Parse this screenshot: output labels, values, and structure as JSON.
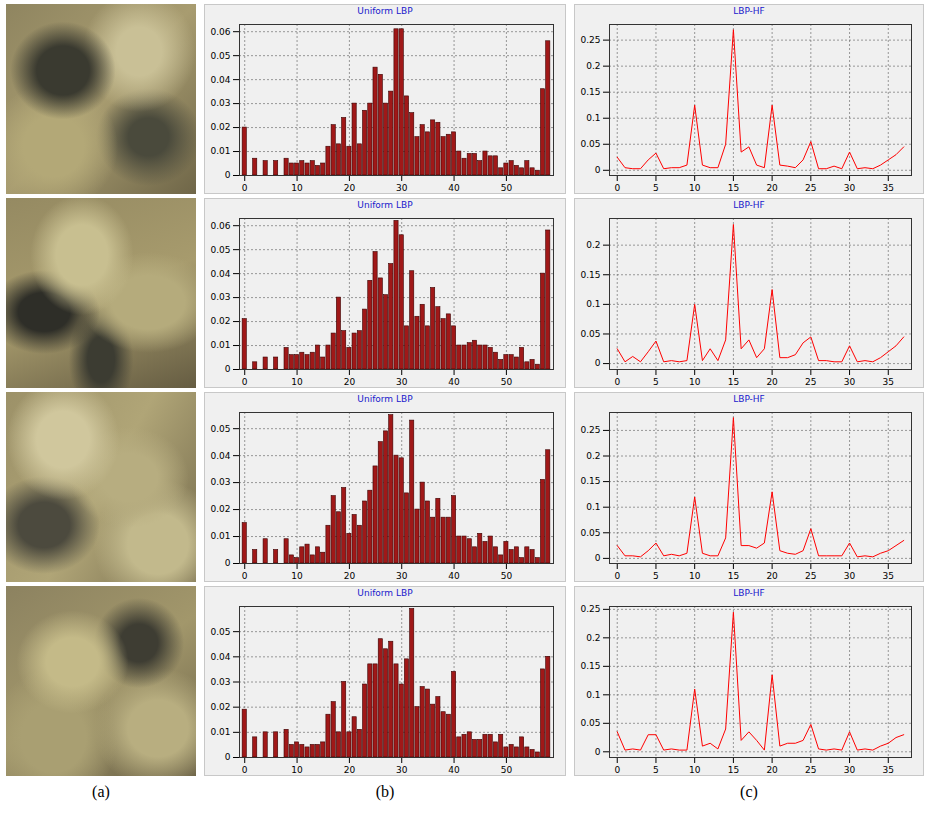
{
  "panel_labels": [
    "(a)",
    "(b)",
    "(c)"
  ],
  "chart_data": [
    {
      "type": "bar",
      "title": "Uniform LBP",
      "color": "#a01818",
      "grid": true,
      "x": [
        0,
        1,
        2,
        3,
        4,
        5,
        6,
        7,
        8,
        9,
        10,
        11,
        12,
        13,
        14,
        15,
        16,
        17,
        18,
        19,
        20,
        21,
        22,
        23,
        24,
        25,
        26,
        27,
        28,
        29,
        30,
        31,
        32,
        33,
        34,
        35,
        36,
        37,
        38,
        39,
        40,
        41,
        42,
        43,
        44,
        45,
        46,
        47,
        48,
        49,
        50,
        51,
        52,
        53,
        54,
        55,
        56,
        57,
        58
      ],
      "values": [
        0.02,
        0,
        0.007,
        0,
        0.006,
        0,
        0.006,
        0,
        0.007,
        0.005,
        0.005,
        0.006,
        0.005,
        0.006,
        0.004,
        0.005,
        0.012,
        0.021,
        0.013,
        0.024,
        0.012,
        0.03,
        0.013,
        0.027,
        0.03,
        0.045,
        0.042,
        0.03,
        0.035,
        0.061,
        0.061,
        0.033,
        0.026,
        0.016,
        0.021,
        0.018,
        0.023,
        0.022,
        0.016,
        0.017,
        0.018,
        0.01,
        0.007,
        0.009,
        0.009,
        0.006,
        0.01,
        0.008,
        0.008,
        0.003,
        0.005,
        0.006,
        0.004,
        0.003,
        0.006,
        0.003,
        0.002,
        0.036,
        0.056
      ],
      "xlim": [
        -1,
        59
      ],
      "xticks": [
        0,
        10,
        20,
        30,
        40,
        50
      ],
      "ylim": [
        0,
        0.063
      ],
      "yticks": [
        0,
        0.01,
        0.02,
        0.03,
        0.04,
        0.05,
        0.06
      ]
    },
    {
      "type": "line",
      "title": "LBP-HF",
      "color": "#ff0000",
      "grid": true,
      "x": [
        0,
        1,
        2,
        3,
        4,
        5,
        6,
        7,
        8,
        9,
        10,
        11,
        12,
        13,
        14,
        15,
        16,
        17,
        18,
        19,
        20,
        21,
        22,
        23,
        24,
        25,
        26,
        27,
        28,
        29,
        30,
        31,
        32,
        33,
        34,
        35,
        36,
        37
      ],
      "values": [
        0.025,
        0.005,
        0.003,
        0.003,
        0.02,
        0.033,
        0.003,
        0.005,
        0.005,
        0.01,
        0.125,
        0.01,
        0.005,
        0.005,
        0.05,
        0.27,
        0.035,
        0.045,
        0.01,
        0.005,
        0.125,
        0.01,
        0.008,
        0.005,
        0.02,
        0.055,
        0.003,
        0.003,
        0.008,
        0.003,
        0.035,
        0.003,
        0.005,
        0.003,
        0.01,
        0.02,
        0.03,
        0.045
      ],
      "xlim": [
        -1,
        38
      ],
      "xticks": [
        0,
        5,
        10,
        15,
        20,
        25,
        30,
        35
      ],
      "ylim": [
        -0.01,
        0.28
      ],
      "yticks": [
        0,
        0.05,
        0.1,
        0.15,
        0.2,
        0.25
      ]
    },
    {
      "type": "bar",
      "title": "Uniform LBP",
      "color": "#a01818",
      "grid": true,
      "x": [
        0,
        1,
        2,
        3,
        4,
        5,
        6,
        7,
        8,
        9,
        10,
        11,
        12,
        13,
        14,
        15,
        16,
        17,
        18,
        19,
        20,
        21,
        22,
        23,
        24,
        25,
        26,
        27,
        28,
        29,
        30,
        31,
        32,
        33,
        34,
        35,
        36,
        37,
        38,
        39,
        40,
        41,
        42,
        43,
        44,
        45,
        46,
        47,
        48,
        49,
        50,
        51,
        52,
        53,
        54,
        55,
        56,
        57,
        58
      ],
      "values": [
        0.021,
        0,
        0.003,
        0,
        0.005,
        0,
        0.005,
        0,
        0.009,
        0.006,
        0.006,
        0.007,
        0.006,
        0.007,
        0.01,
        0.005,
        0.01,
        0.015,
        0.03,
        0.016,
        0.009,
        0.015,
        0.016,
        0.025,
        0.037,
        0.049,
        0.038,
        0.031,
        0.044,
        0.062,
        0.056,
        0.018,
        0.041,
        0.022,
        0.027,
        0.018,
        0.034,
        0.026,
        0.021,
        0.023,
        0.018,
        0.01,
        0.01,
        0.011,
        0.012,
        0.01,
        0.01,
        0.009,
        0.007,
        0.004,
        0.006,
        0.006,
        0.005,
        0.009,
        0.003,
        0.004,
        0.002,
        0.04,
        0.058
      ],
      "xlim": [
        -1,
        59
      ],
      "xticks": [
        0,
        10,
        20,
        30,
        40,
        50
      ],
      "ylim": [
        0,
        0.063
      ],
      "yticks": [
        0,
        0.01,
        0.02,
        0.03,
        0.04,
        0.05,
        0.06
      ]
    },
    {
      "type": "line",
      "title": "LBP-HF",
      "color": "#ff0000",
      "grid": true,
      "x": [
        0,
        1,
        2,
        3,
        4,
        5,
        6,
        7,
        8,
        9,
        10,
        11,
        12,
        13,
        14,
        15,
        16,
        17,
        18,
        19,
        20,
        21,
        22,
        23,
        24,
        25,
        26,
        27,
        28,
        29,
        30,
        31,
        32,
        33,
        34,
        35,
        36,
        37
      ],
      "values": [
        0.025,
        0.003,
        0.012,
        0.003,
        0.02,
        0.038,
        0.003,
        0.005,
        0.003,
        0.005,
        0.1,
        0.005,
        0.025,
        0.005,
        0.04,
        0.235,
        0.025,
        0.04,
        0.01,
        0.025,
        0.125,
        0.01,
        0.01,
        0.015,
        0.035,
        0.045,
        0.005,
        0.005,
        0.003,
        0.003,
        0.03,
        0.003,
        0.005,
        0.003,
        0.01,
        0.02,
        0.03,
        0.045
      ],
      "xlim": [
        -1,
        38
      ],
      "xticks": [
        0,
        5,
        10,
        15,
        20,
        25,
        30,
        35
      ],
      "ylim": [
        -0.01,
        0.245
      ],
      "yticks": [
        0,
        0.05,
        0.1,
        0.15,
        0.2
      ]
    },
    {
      "type": "bar",
      "title": "Uniform LBP",
      "color": "#a01818",
      "grid": true,
      "x": [
        0,
        1,
        2,
        3,
        4,
        5,
        6,
        7,
        8,
        9,
        10,
        11,
        12,
        13,
        14,
        15,
        16,
        17,
        18,
        19,
        20,
        21,
        22,
        23,
        24,
        25,
        26,
        27,
        28,
        29,
        30,
        31,
        32,
        33,
        34,
        35,
        36,
        37,
        38,
        39,
        40,
        41,
        42,
        43,
        44,
        45,
        46,
        47,
        48,
        49,
        50,
        51,
        52,
        53,
        54,
        55,
        56,
        57,
        58
      ],
      "values": [
        0.015,
        0,
        0.005,
        0,
        0.009,
        0,
        0.005,
        0,
        0.009,
        0.003,
        0.002,
        0.006,
        0.007,
        0.003,
        0.006,
        0.004,
        0.014,
        0.025,
        0.019,
        0.028,
        0.011,
        0.018,
        0.014,
        0.023,
        0.027,
        0.036,
        0.045,
        0.049,
        0.055,
        0.04,
        0.039,
        0.026,
        0.053,
        0.02,
        0.03,
        0.023,
        0.017,
        0.024,
        0.017,
        0.017,
        0.025,
        0.01,
        0.01,
        0.009,
        0.006,
        0.011,
        0.008,
        0.01,
        0.006,
        0.003,
        0.008,
        0.005,
        0.006,
        0.002,
        0.006,
        0.005,
        0.002,
        0.031,
        0.042
      ],
      "xlim": [
        -1,
        59
      ],
      "xticks": [
        0,
        10,
        20,
        30,
        40,
        50
      ],
      "ylim": [
        0,
        0.056
      ],
      "yticks": [
        0,
        0.01,
        0.02,
        0.03,
        0.04,
        0.05
      ]
    },
    {
      "type": "line",
      "title": "LBP-HF",
      "color": "#ff0000",
      "grid": true,
      "x": [
        0,
        1,
        2,
        3,
        4,
        5,
        6,
        7,
        8,
        9,
        10,
        11,
        12,
        13,
        14,
        15,
        16,
        17,
        18,
        19,
        20,
        21,
        22,
        23,
        24,
        25,
        26,
        27,
        28,
        29,
        30,
        31,
        32,
        33,
        34,
        35,
        36,
        37
      ],
      "values": [
        0.025,
        0.005,
        0.005,
        0.003,
        0.015,
        0.03,
        0.005,
        0.008,
        0.005,
        0.01,
        0.12,
        0.01,
        0.005,
        0.005,
        0.04,
        0.275,
        0.025,
        0.025,
        0.02,
        0.03,
        0.13,
        0.015,
        0.01,
        0.008,
        0.015,
        0.058,
        0.005,
        0.005,
        0.005,
        0.005,
        0.03,
        0.003,
        0.005,
        0.003,
        0.01,
        0.015,
        0.025,
        0.035
      ],
      "xlim": [
        -1,
        38
      ],
      "xticks": [
        0,
        5,
        10,
        15,
        20,
        25,
        30,
        35
      ],
      "ylim": [
        -0.01,
        0.285
      ],
      "yticks": [
        0,
        0.05,
        0.1,
        0.15,
        0.2,
        0.25
      ]
    },
    {
      "type": "bar",
      "title": "Uniform LBP",
      "color": "#a01818",
      "grid": true,
      "x": [
        0,
        1,
        2,
        3,
        4,
        5,
        6,
        7,
        8,
        9,
        10,
        11,
        12,
        13,
        14,
        15,
        16,
        17,
        18,
        19,
        20,
        21,
        22,
        23,
        24,
        25,
        26,
        27,
        28,
        29,
        30,
        31,
        32,
        33,
        34,
        35,
        36,
        37,
        38,
        39,
        40,
        41,
        42,
        43,
        44,
        45,
        46,
        47,
        48,
        49,
        50,
        51,
        52,
        53,
        54,
        55,
        56,
        57,
        58
      ],
      "values": [
        0.019,
        0,
        0.008,
        0,
        0.01,
        0,
        0.01,
        0,
        0.011,
        0.005,
        0.006,
        0.005,
        0.004,
        0.005,
        0.005,
        0.006,
        0.017,
        0.022,
        0.01,
        0.03,
        0.01,
        0.016,
        0.011,
        0.029,
        0.037,
        0.037,
        0.047,
        0.043,
        0.046,
        0.037,
        0.029,
        0.039,
        0.059,
        0.02,
        0.028,
        0.027,
        0.021,
        0.024,
        0.018,
        0.017,
        0.034,
        0.008,
        0.009,
        0.01,
        0.007,
        0.007,
        0.009,
        0.009,
        0.006,
        0.009,
        0.004,
        0.005,
        0.004,
        0.008,
        0.004,
        0.003,
        0.002,
        0.035,
        0.04
      ],
      "xlim": [
        -1,
        59
      ],
      "xticks": [
        0,
        10,
        20,
        30,
        40,
        50
      ],
      "ylim": [
        0,
        0.06
      ],
      "yticks": [
        0,
        0.01,
        0.02,
        0.03,
        0.04,
        0.05
      ]
    },
    {
      "type": "line",
      "title": "LBP-HF",
      "color": "#ff0000",
      "grid": true,
      "x": [
        0,
        1,
        2,
        3,
        4,
        5,
        6,
        7,
        8,
        9,
        10,
        11,
        12,
        13,
        14,
        15,
        16,
        17,
        18,
        19,
        20,
        21,
        22,
        23,
        24,
        25,
        26,
        27,
        28,
        29,
        30,
        31,
        32,
        33,
        34,
        35,
        36,
        37
      ],
      "values": [
        0.035,
        0.003,
        0.005,
        0.003,
        0.03,
        0.03,
        0.003,
        0.005,
        0.003,
        0.003,
        0.11,
        0.01,
        0.015,
        0.005,
        0.04,
        0.245,
        0.02,
        0.035,
        0.02,
        0.003,
        0.135,
        0.01,
        0.015,
        0.015,
        0.02,
        0.048,
        0.005,
        0.003,
        0.005,
        0.003,
        0.035,
        0.003,
        0.005,
        0.003,
        0.01,
        0.015,
        0.025,
        0.03
      ],
      "xlim": [
        -1,
        38
      ],
      "xticks": [
        0,
        5,
        10,
        15,
        20,
        25,
        30,
        35
      ],
      "ylim": [
        -0.01,
        0.255
      ],
      "yticks": [
        0,
        0.05,
        0.1,
        0.15,
        0.2,
        0.25
      ]
    }
  ]
}
